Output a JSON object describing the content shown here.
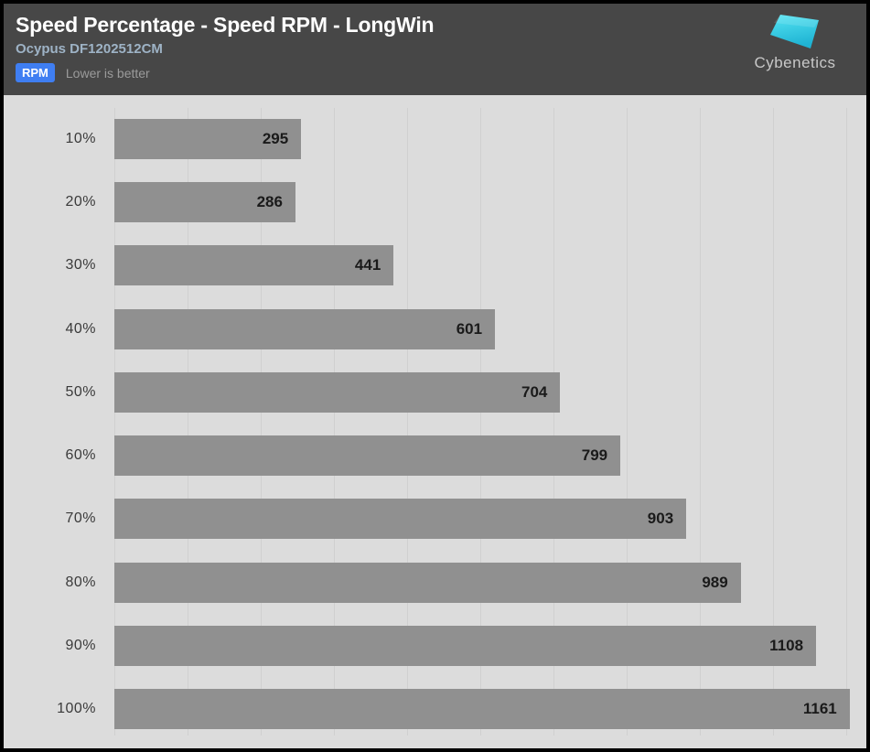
{
  "header": {
    "title": "Speed Percentage - Speed RPM - LongWin",
    "subtitle": "Ocypus DF1202512CM",
    "unit_badge": "RPM",
    "note": "Lower is better",
    "logo_text": "Cybenetics"
  },
  "chart_data": {
    "type": "bar",
    "orientation": "horizontal",
    "categories": [
      "10%",
      "20%",
      "30%",
      "40%",
      "50%",
      "60%",
      "70%",
      "80%",
      "90%",
      "100%"
    ],
    "values": [
      295,
      286,
      441,
      601,
      704,
      799,
      903,
      989,
      1108,
      1161
    ],
    "series": [
      {
        "name": "Speed RPM",
        "values": [
          295,
          286,
          441,
          601,
          704,
          799,
          903,
          989,
          1108,
          1161
        ]
      }
    ],
    "title": "Speed Percentage - Speed RPM - LongWin",
    "subtitle": "Ocypus DF1202512CM",
    "unit": "RPM",
    "xlabel": "",
    "ylabel": "",
    "xlim": [
      0,
      1170
    ],
    "grid": "vertical-only",
    "gridline_count": 11,
    "legend": "none",
    "annotation": "Lower is better",
    "value_labels": "inside-end"
  },
  "colors": {
    "frame_border": "#000000",
    "header_bg": "#474747",
    "title": "#ffffff",
    "subtitle": "#9eb3c6",
    "badge_bg": "#3f7ef2",
    "badge_text": "#ffffff",
    "note": "#9b9b9b",
    "chart_bg": "#dcdcdc",
    "gridline": "#d0d0d0",
    "bar": "#909090",
    "category_label": "#3a3a3a",
    "value_label": "#1a1a1a",
    "logo_text": "#c8c8c8",
    "logo_cyan_light": "#55e5f3",
    "logo_cyan_dark": "#1fb3d3"
  }
}
